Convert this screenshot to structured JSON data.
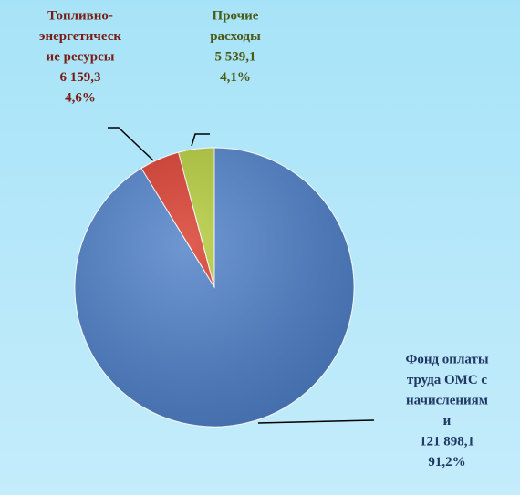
{
  "chart_data": {
    "type": "pie",
    "categories": [
      [
        "Фонд оплаты",
        "труда ОМС с",
        "начисления­м",
        "и"
      ],
      [
        "Топливно-",
        "энергетическ",
        "ие ресурсы"
      ],
      [
        "Прочие",
        "расходы"
      ]
    ],
    "values": [
      121898.1,
      6159.3,
      5539.1
    ],
    "value_labels": [
      "121 898,1",
      "6 159,3",
      "5 539,1"
    ],
    "percents": [
      91.2,
      4.6,
      4.1
    ],
    "percent_labels": [
      "91,2%",
      "4,6%",
      "4,1%"
    ],
    "colors": [
      "#4f81c9",
      "#d93a2c",
      "#b3cb3a"
    ],
    "label_colors": [
      "#1f3864",
      "#7a1c14",
      "#4b5a16"
    ]
  }
}
